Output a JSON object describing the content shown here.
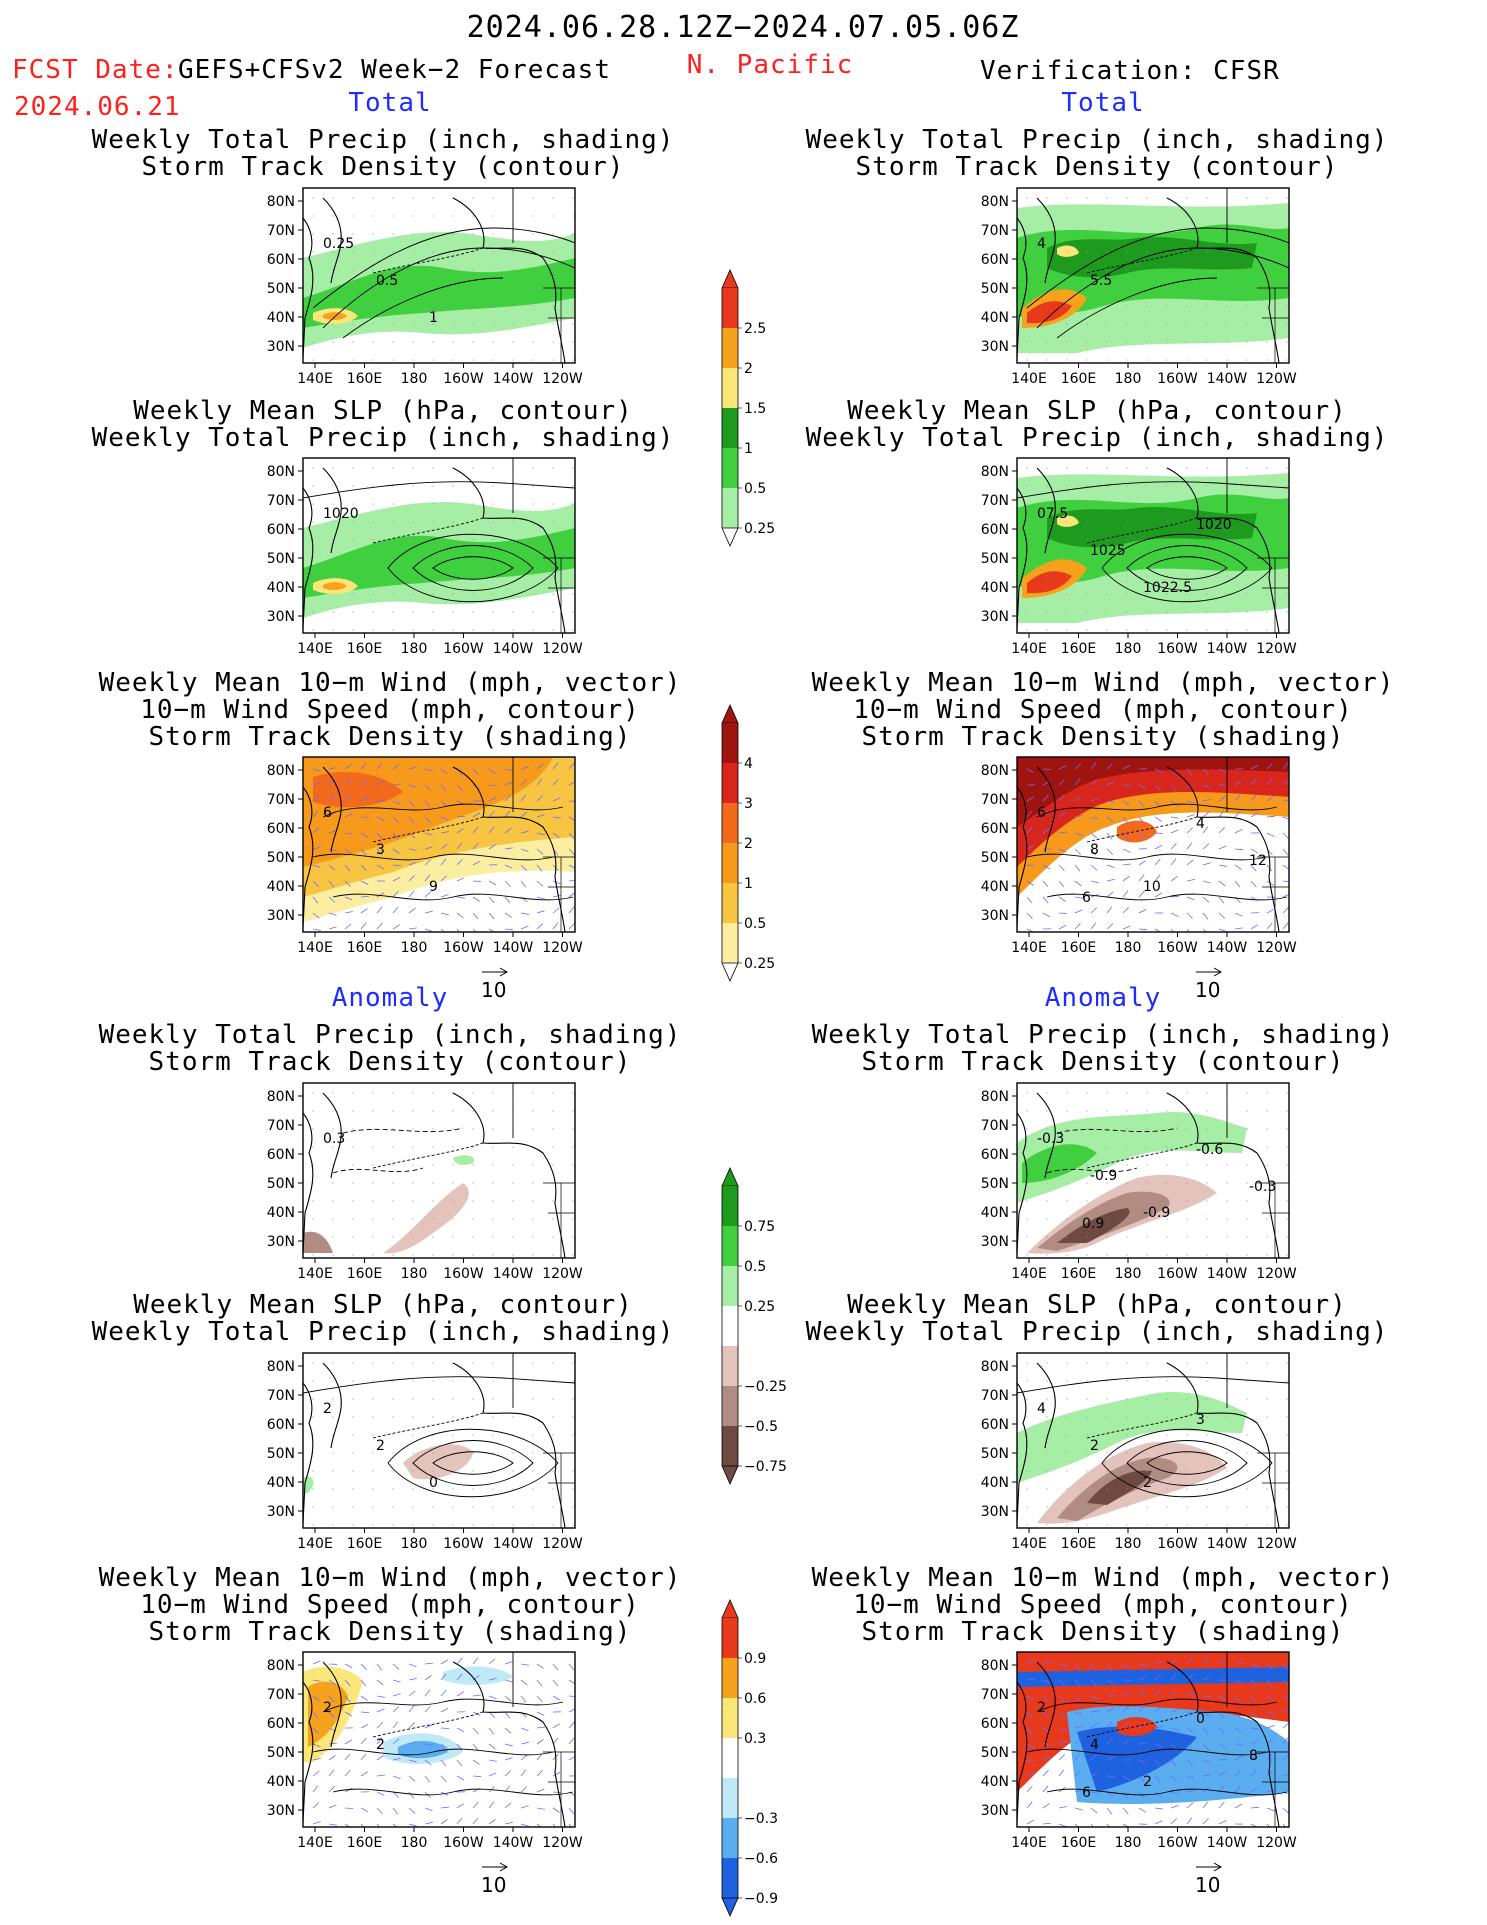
{
  "header": {
    "period": "2024.06.28.12Z−2024.07.05.06Z",
    "fcst_label": "FCST Date:",
    "model": "GEFS+CFSv2 Week−2 Forecast",
    "fcst_date": "2024.06.21",
    "region": "N. Pacific",
    "verification": "Verification: CFSR"
  },
  "sections": {
    "total": "Total",
    "anomaly": "Anomaly"
  },
  "titles": {
    "precip_storm": [
      "Weekly Total Precip (inch, shading)",
      "Storm Track Density (contour)"
    ],
    "slp_precip": [
      "Weekly Mean SLP (hPa, contour)",
      "Weekly Total Precip (inch, shading)"
    ],
    "wind_storm": [
      "Weekly Mean 10−m Wind (mph, vector)",
      "10−m Wind Speed (mph, contour)",
      "Storm Track Density (shading)"
    ]
  },
  "axes": {
    "lat": [
      "80N",
      "70N",
      "60N",
      "50N",
      "40N",
      "30N"
    ],
    "lon": [
      "140E",
      "160E",
      "180",
      "160W",
      "140W",
      "120W"
    ]
  },
  "vector_ref": "10",
  "colorbars": {
    "precip_total": {
      "labels": [
        "2.5",
        "2",
        "1.5",
        "1",
        "0.5",
        "0.25"
      ],
      "colors": [
        "#e8391c",
        "#f7a21c",
        "#fbe67a",
        "#1e9a1e",
        "#3fcf3f",
        "#a6eea6"
      ]
    },
    "storm_total": {
      "labels": [
        "4",
        "3",
        "2",
        "1",
        "0.5",
        "0.25"
      ],
      "colors": [
        "#a0140f",
        "#d9261c",
        "#f36a1c",
        "#f79a1c",
        "#f7c542",
        "#fbeea0"
      ]
    },
    "precip_anom": {
      "labels": [
        "0.75",
        "0.5",
        "0.25",
        "−0.25",
        "−0.5",
        "−0.75"
      ],
      "colors": [
        "#1e9a1e",
        "#3fcf3f",
        "#a6eea6",
        "#ffffff",
        "#e3c3bb",
        "#b08c82",
        "#6e4a40"
      ]
    },
    "storm_anom": {
      "labels": [
        "0.9",
        "0.6",
        "0.3",
        "−0.3",
        "−0.6",
        "−0.9"
      ],
      "colors": [
        "#e8391c",
        "#f7a21c",
        "#fbe67a",
        "#ffffff",
        "#bfe9f7",
        "#5aaef0",
        "#1f62e0"
      ]
    }
  },
  "panels": [
    {
      "name": "fcst-total-precip-storm",
      "section": "total",
      "title": "precip_storm",
      "labels": [
        "0.25",
        "0.5",
        "1"
      ]
    },
    {
      "name": "fcst-total-slp-precip",
      "section": "total",
      "title": "slp_precip",
      "labels": [
        "1020"
      ]
    },
    {
      "name": "fcst-total-wind-storm",
      "section": "total",
      "title": "wind_storm",
      "labels": [
        "6",
        "3",
        "9"
      ]
    },
    {
      "name": "fcst-anom-precip-storm",
      "section": "anomaly",
      "title": "precip_storm",
      "labels": [
        "0.3"
      ]
    },
    {
      "name": "fcst-anom-slp-precip",
      "section": "anomaly",
      "title": "slp_precip",
      "labels": [
        "2",
        "2",
        "0"
      ]
    },
    {
      "name": "fcst-anom-wind-storm",
      "section": "anomaly",
      "title": "wind_storm",
      "labels": [
        "2",
        "2"
      ]
    },
    {
      "name": "verif-total-precip-storm",
      "section": "total",
      "title": "precip_storm",
      "labels": [
        "4",
        "5.5"
      ]
    },
    {
      "name": "verif-total-slp-precip",
      "section": "total",
      "title": "slp_precip",
      "labels": [
        "07.5",
        "1025",
        "1022.5",
        "1020"
      ]
    },
    {
      "name": "verif-total-wind-storm",
      "section": "total",
      "title": "wind_storm",
      "labels": [
        "6",
        "8",
        "10",
        "4",
        "12",
        "6"
      ]
    },
    {
      "name": "verif-anom-precip-storm",
      "section": "anomaly",
      "title": "precip_storm",
      "labels": [
        "-0.3",
        "-0.9",
        "-0.9",
        "-0.6",
        "-0.3",
        "0.9"
      ]
    },
    {
      "name": "verif-anom-slp-precip",
      "section": "anomaly",
      "title": "slp_precip",
      "labels": [
        "4",
        "2",
        "2",
        "3"
      ]
    },
    {
      "name": "verif-anom-wind-storm",
      "section": "anomaly",
      "title": "wind_storm",
      "labels": [
        "2",
        "4",
        "2",
        "0",
        "8",
        "6"
      ]
    }
  ]
}
